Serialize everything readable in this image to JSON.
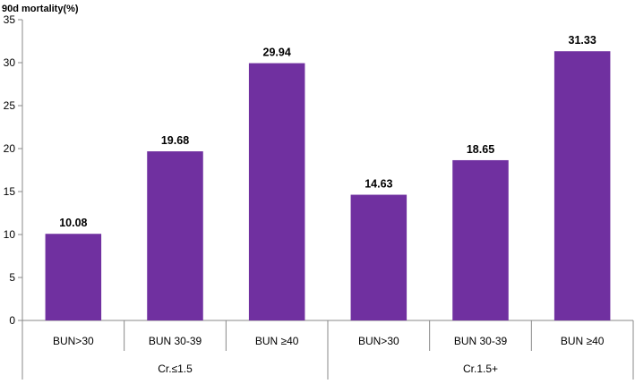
{
  "chart_data": {
    "type": "bar",
    "ylabel": "90d mortality(%)",
    "ylim": [
      0,
      35
    ],
    "yticks": [
      0,
      5,
      10,
      15,
      20,
      25,
      30,
      35
    ],
    "grid": false,
    "legend": "none",
    "bar_color": "#7030A0",
    "categories": [
      "BUN>30",
      "BUN 30-39",
      "BUN ≥40",
      "BUN>30",
      "BUN 30-39",
      "BUN ≥40"
    ],
    "groups": [
      {
        "label": "Cr.≤1.5",
        "span": 3
      },
      {
        "label": "Cr.1.5+",
        "span": 3
      }
    ],
    "values": [
      10.08,
      19.68,
      29.94,
      14.63,
      18.65,
      31.33
    ],
    "data_labels": [
      "10.08",
      "19.68",
      "29.94",
      "14.63",
      "18.65",
      "31.33"
    ]
  }
}
